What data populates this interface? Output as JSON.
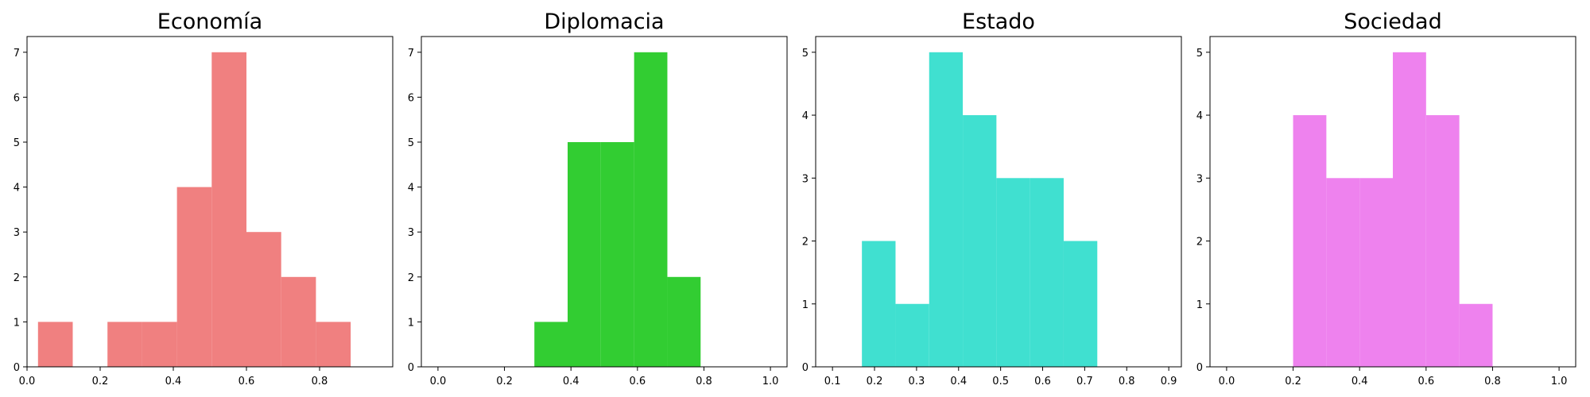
{
  "chart_data": [
    {
      "type": "bar",
      "title": "Economía",
      "color": "#f08080",
      "xlabel": "",
      "ylabel": "",
      "xlim": [
        0,
        1.0
      ],
      "ylim": [
        0,
        7.35
      ],
      "xticks": [
        "0.0",
        "0.2",
        "0.4",
        "0.6",
        "0.8"
      ],
      "yticks": [
        "0",
        "1",
        "2",
        "3",
        "4",
        "5",
        "6",
        "7"
      ],
      "bins": [
        {
          "x0": 0.03,
          "x1": 0.125,
          "count": 1
        },
        {
          "x0": 0.125,
          "x1": 0.22,
          "count": 0
        },
        {
          "x0": 0.22,
          "x1": 0.315,
          "count": 1
        },
        {
          "x0": 0.315,
          "x1": 0.41,
          "count": 1
        },
        {
          "x0": 0.41,
          "x1": 0.505,
          "count": 4
        },
        {
          "x0": 0.505,
          "x1": 0.6,
          "count": 7
        },
        {
          "x0": 0.6,
          "x1": 0.695,
          "count": 3
        },
        {
          "x0": 0.695,
          "x1": 0.79,
          "count": 2
        },
        {
          "x0": 0.79,
          "x1": 0.885,
          "count": 1
        }
      ]
    },
    {
      "type": "bar",
      "title": "Diplomacia",
      "color": "#32cd32",
      "xlabel": "",
      "ylabel": "",
      "xlim": [
        -0.05,
        1.05
      ],
      "ylim": [
        0,
        7.35
      ],
      "xticks": [
        "0.0",
        "0.2",
        "0.4",
        "0.6",
        "0.8",
        "1.0"
      ],
      "yticks": [
        "0",
        "1",
        "2",
        "3",
        "4",
        "5",
        "6",
        "7"
      ],
      "bins": [
        {
          "x0": 0.29,
          "x1": 0.39,
          "count": 1
        },
        {
          "x0": 0.39,
          "x1": 0.49,
          "count": 5
        },
        {
          "x0": 0.49,
          "x1": 0.59,
          "count": 5
        },
        {
          "x0": 0.59,
          "x1": 0.69,
          "count": 7
        },
        {
          "x0": 0.69,
          "x1": 0.79,
          "count": 2
        }
      ]
    },
    {
      "type": "bar",
      "title": "Estado",
      "color": "#40e0d0",
      "xlabel": "",
      "ylabel": "",
      "xlim": [
        0.06,
        0.93
      ],
      "ylim": [
        0,
        5.25
      ],
      "xticks": [
        "0.1",
        "0.2",
        "0.3",
        "0.4",
        "0.5",
        "0.6",
        "0.7",
        "0.8",
        "0.9"
      ],
      "yticks": [
        "0",
        "1",
        "2",
        "3",
        "4",
        "5"
      ],
      "bins": [
        {
          "x0": 0.17,
          "x1": 0.25,
          "count": 2
        },
        {
          "x0": 0.25,
          "x1": 0.33,
          "count": 1
        },
        {
          "x0": 0.33,
          "x1": 0.41,
          "count": 5
        },
        {
          "x0": 0.41,
          "x1": 0.49,
          "count": 4
        },
        {
          "x0": 0.49,
          "x1": 0.57,
          "count": 3
        },
        {
          "x0": 0.57,
          "x1": 0.65,
          "count": 3
        },
        {
          "x0": 0.65,
          "x1": 0.73,
          "count": 2
        }
      ]
    },
    {
      "type": "bar",
      "title": "Sociedad",
      "color": "#ee82ee",
      "xlabel": "",
      "ylabel": "",
      "xlim": [
        -0.05,
        1.05
      ],
      "ylim": [
        0,
        5.25
      ],
      "xticks": [
        "0.0",
        "0.2",
        "0.4",
        "0.6",
        "0.8",
        "1.0"
      ],
      "yticks": [
        "0",
        "1",
        "2",
        "3",
        "4",
        "5"
      ],
      "bins": [
        {
          "x0": 0.2,
          "x1": 0.3,
          "count": 4
        },
        {
          "x0": 0.3,
          "x1": 0.4,
          "count": 3
        },
        {
          "x0": 0.4,
          "x1": 0.5,
          "count": 3
        },
        {
          "x0": 0.5,
          "x1": 0.6,
          "count": 5
        },
        {
          "x0": 0.6,
          "x1": 0.7,
          "count": 4
        },
        {
          "x0": 0.7,
          "x1": 0.8,
          "count": 1
        }
      ]
    }
  ]
}
